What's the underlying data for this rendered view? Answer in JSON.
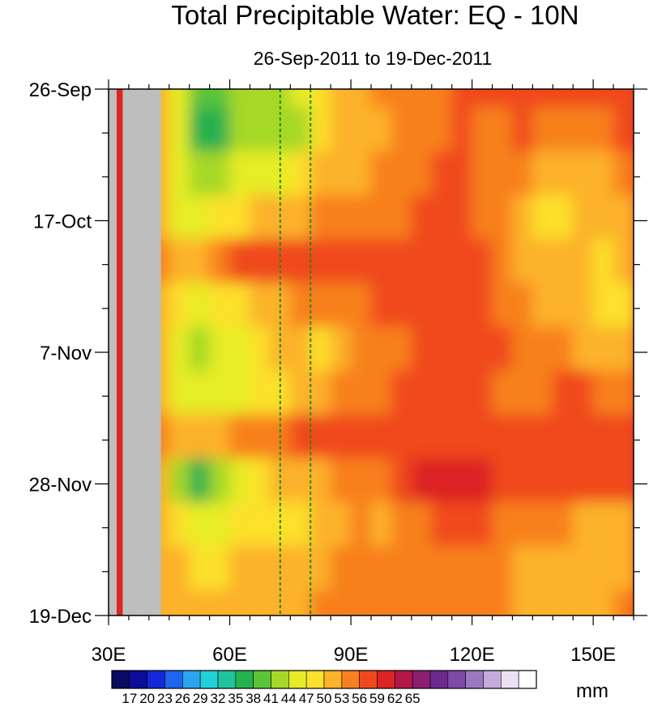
{
  "chart_data": {
    "type": "heatmap",
    "title": "Total Precipitable Water: EQ - 10N",
    "subtitle": "26-Sep-2011 to 19-Dec-2011",
    "x_axis": {
      "label": "",
      "range": [
        30,
        160
      ],
      "tick_values": [
        30,
        60,
        90,
        120,
        150
      ],
      "tick_labels": [
        "30E",
        "60E",
        "90E",
        "120E",
        "150E"
      ],
      "minor_step": 5
    },
    "y_axis": {
      "label": "",
      "range_days": [
        0,
        84
      ],
      "direction": "top-to-bottom",
      "tick_days": [
        0,
        21,
        42,
        63,
        84
      ],
      "tick_labels": [
        "26-Sep",
        "17-Oct",
        "7-Nov",
        "28-Nov",
        "19-Dec"
      ],
      "minor_step_days": 7
    },
    "land_mask": {
      "label": "land (no data)",
      "color": "#bebebe",
      "lon_ranges": [
        [
          30,
          32
        ],
        [
          33.5,
          43
        ]
      ]
    },
    "reference_lines": {
      "style": "dashed",
      "color": "#1e8c1e",
      "lon": [
        72.5,
        80
      ]
    },
    "colorbar": {
      "units": "mm",
      "levels": [
        17,
        20,
        23,
        26,
        29,
        32,
        35,
        38,
        41,
        44,
        47,
        50,
        53,
        56,
        59,
        62,
        65
      ],
      "labels": [
        "17",
        "20",
        "23",
        "26",
        "29",
        "32",
        "35",
        "38",
        "41",
        "44",
        "47",
        "50",
        "53",
        "56",
        "59",
        "62",
        "65"
      ],
      "colors": [
        "#0a0a60",
        "#0c0c9c",
        "#1328d8",
        "#1e64f0",
        "#2aa6f0",
        "#22d0d8",
        "#20c49a",
        "#26b050",
        "#5cc43a",
        "#a6d828",
        "#e6ec28",
        "#fce02a",
        "#fcb22a",
        "#f8801e",
        "#f04a1c",
        "#dc2424",
        "#b41848",
        "#8c1e72",
        "#6c2a8e",
        "#7e4aa8",
        "#9c78c2",
        "#c4acda",
        "#eae2f2",
        "#ffffff"
      ]
    },
    "field": {
      "lons": [
        43,
        48,
        53,
        58,
        63,
        68,
        73,
        78,
        83,
        88,
        93,
        98,
        103,
        108,
        113,
        118,
        123,
        128,
        133,
        138,
        143,
        148,
        153,
        158
      ],
      "days": [
        0,
        7,
        14,
        21,
        28,
        35,
        42,
        49,
        56,
        63,
        70,
        77,
        84
      ],
      "values_mm": [
        [
          50,
          46,
          38,
          40,
          43,
          43,
          42,
          44,
          48,
          50,
          51,
          53,
          54,
          55,
          55,
          56,
          56,
          56,
          57,
          57,
          57,
          57,
          57,
          57
        ],
        [
          51,
          45,
          36,
          37,
          41,
          43,
          42,
          43,
          47,
          50,
          51,
          52,
          53,
          54,
          55,
          56,
          55,
          55,
          56,
          55,
          54,
          54,
          55,
          56
        ],
        [
          51,
          46,
          42,
          42,
          44,
          45,
          45,
          48,
          51,
          51,
          52,
          53,
          54,
          55,
          56,
          56,
          55,
          54,
          54,
          52,
          51,
          50,
          51,
          53
        ],
        [
          52,
          46,
          46,
          48,
          49,
          51,
          51,
          52,
          53,
          53,
          54,
          54,
          55,
          56,
          56,
          56,
          55,
          53,
          50,
          49,
          49,
          50,
          51,
          52
        ],
        [
          54,
          51,
          52,
          54,
          56,
          57,
          57,
          57,
          56,
          56,
          56,
          56,
          56,
          57,
          57,
          57,
          56,
          53,
          51,
          50,
          51,
          50,
          49,
          50
        ],
        [
          52,
          47,
          46,
          47,
          48,
          50,
          52,
          53,
          54,
          55,
          55,
          56,
          56,
          57,
          58,
          58,
          57,
          55,
          53,
          51,
          51,
          50,
          49,
          49
        ],
        [
          50,
          44,
          43,
          45,
          46,
          48,
          50,
          50,
          49,
          51,
          53,
          54,
          55,
          56,
          58,
          58,
          57,
          56,
          55,
          54,
          53,
          52,
          51,
          52
        ],
        [
          50,
          45,
          44,
          45,
          46,
          47,
          49,
          50,
          52,
          53,
          54,
          55,
          56,
          57,
          57,
          57,
          56,
          55,
          54,
          55,
          56,
          56,
          55,
          55
        ],
        [
          53,
          50,
          50,
          51,
          53,
          54,
          55,
          56,
          56,
          57,
          57,
          57,
          57,
          57,
          57,
          57,
          56,
          56,
          56,
          56,
          56,
          56,
          56,
          56
        ],
        [
          51,
          43,
          36,
          43,
          46,
          48,
          50,
          51,
          52,
          53,
          54,
          55,
          57,
          59,
          60,
          60,
          59,
          58,
          57,
          57,
          57,
          57,
          57,
          57
        ],
        [
          51,
          48,
          46,
          46,
          47,
          48,
          48,
          49,
          50,
          52,
          53,
          52,
          53,
          55,
          57,
          57,
          56,
          55,
          55,
          54,
          53,
          52,
          51,
          52
        ],
        [
          52,
          50,
          49,
          49,
          50,
          50,
          51,
          51,
          52,
          53,
          54,
          53,
          53,
          54,
          55,
          55,
          54,
          53,
          52,
          51,
          50,
          50,
          51,
          52
        ],
        [
          52,
          51,
          50,
          50,
          50,
          51,
          51,
          52,
          53,
          54,
          54,
          54,
          54,
          55,
          55,
          55,
          54,
          53,
          52,
          51,
          51,
          51,
          52,
          53
        ]
      ]
    }
  }
}
